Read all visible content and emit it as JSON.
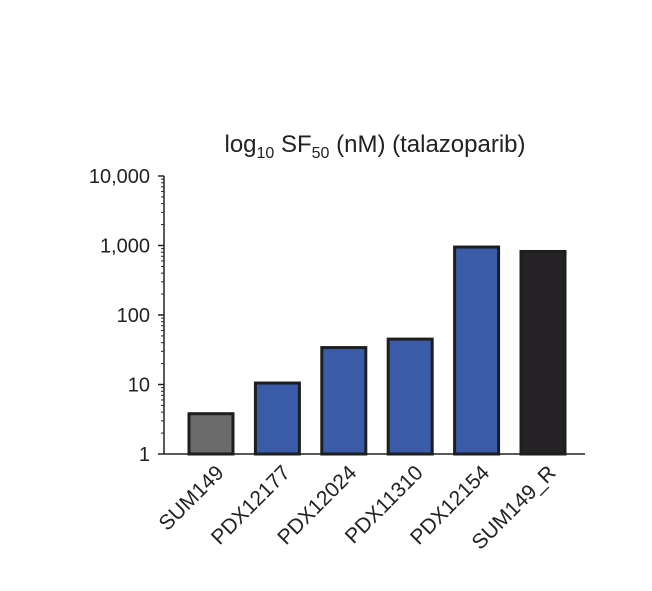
{
  "chart_data": {
    "type": "bar",
    "title": {
      "prefix": "log",
      "prefix_sub": "10",
      "middle": " SF",
      "middle_sub": "50",
      "suffix": " (nM) (talazoparib)"
    },
    "xlabel": "",
    "ylabel": "",
    "yscale": "log",
    "ylim": [
      1,
      10000
    ],
    "yticks": [
      {
        "value": 1,
        "label": "1"
      },
      {
        "value": 10,
        "label": "10"
      },
      {
        "value": 100,
        "label": "100"
      },
      {
        "value": 1000,
        "label": "1,000"
      },
      {
        "value": 10000,
        "label": "10,000"
      }
    ],
    "categories": [
      "SUM149",
      "PDX12177",
      "PDX12024",
      "PDX11310",
      "PDX12154",
      "SUM149_R"
    ],
    "values": [
      3.8,
      10.5,
      34,
      45,
      950,
      820
    ],
    "colors": [
      "#6b6b6b",
      "#3a5ba8",
      "#3a5ba8",
      "#3a5ba8",
      "#3a5ba8",
      "#252325"
    ],
    "grid": false,
    "legend": "none"
  }
}
